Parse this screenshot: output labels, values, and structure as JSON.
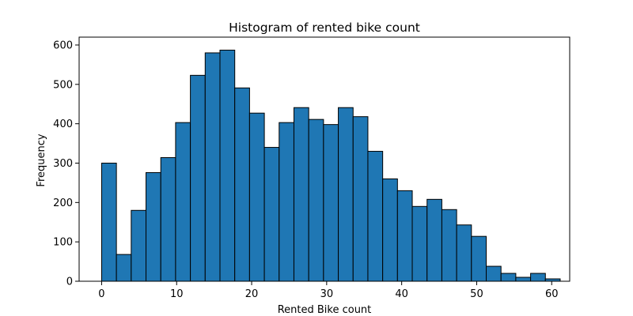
{
  "chart_data": {
    "type": "bar",
    "title": "Histogram of rented bike count",
    "xlabel": "Rented Bike count",
    "ylabel": "Frequency",
    "bar_color": "#1f77b4",
    "edge_color": "#000000",
    "bin_width": 1.972,
    "bins": [
      {
        "start": 0.0,
        "end": 1.972,
        "value": 300
      },
      {
        "start": 1.972,
        "end": 3.944,
        "value": 68
      },
      {
        "start": 3.944,
        "end": 5.916,
        "value": 180
      },
      {
        "start": 5.916,
        "end": 7.888,
        "value": 276
      },
      {
        "start": 7.888,
        "end": 9.86,
        "value": 314
      },
      {
        "start": 9.86,
        "end": 11.832,
        "value": 403
      },
      {
        "start": 11.832,
        "end": 13.804,
        "value": 523
      },
      {
        "start": 13.804,
        "end": 15.776,
        "value": 580
      },
      {
        "start": 15.776,
        "end": 17.748,
        "value": 587
      },
      {
        "start": 17.748,
        "end": 19.72,
        "value": 491
      },
      {
        "start": 19.72,
        "end": 21.692,
        "value": 427
      },
      {
        "start": 21.692,
        "end": 23.664,
        "value": 340
      },
      {
        "start": 23.664,
        "end": 25.636,
        "value": 403
      },
      {
        "start": 25.636,
        "end": 27.608,
        "value": 441
      },
      {
        "start": 27.608,
        "end": 29.58,
        "value": 411
      },
      {
        "start": 29.58,
        "end": 31.552,
        "value": 398
      },
      {
        "start": 31.552,
        "end": 33.524,
        "value": 441
      },
      {
        "start": 33.524,
        "end": 35.496,
        "value": 418
      },
      {
        "start": 35.496,
        "end": 37.468,
        "value": 330
      },
      {
        "start": 37.468,
        "end": 39.44,
        "value": 260
      },
      {
        "start": 39.44,
        "end": 41.412,
        "value": 230
      },
      {
        "start": 41.412,
        "end": 43.384,
        "value": 190
      },
      {
        "start": 43.384,
        "end": 45.356,
        "value": 208
      },
      {
        "start": 45.356,
        "end": 47.328,
        "value": 182
      },
      {
        "start": 47.328,
        "end": 49.3,
        "value": 143
      },
      {
        "start": 49.3,
        "end": 51.272,
        "value": 114
      },
      {
        "start": 51.272,
        "end": 53.244,
        "value": 38
      },
      {
        "start": 53.244,
        "end": 55.216,
        "value": 20
      },
      {
        "start": 55.216,
        "end": 57.188,
        "value": 10
      },
      {
        "start": 57.188,
        "end": 59.16,
        "value": 20
      },
      {
        "start": 59.16,
        "end": 61.132,
        "value": 6
      }
    ],
    "xlim": [
      -3.0,
      62.4
    ],
    "ylim": [
      0,
      620
    ],
    "xticks": [
      0,
      10,
      20,
      30,
      40,
      50,
      60
    ],
    "yticks": [
      0,
      100,
      200,
      300,
      400,
      500,
      600
    ],
    "grid": false,
    "legend": "none"
  }
}
